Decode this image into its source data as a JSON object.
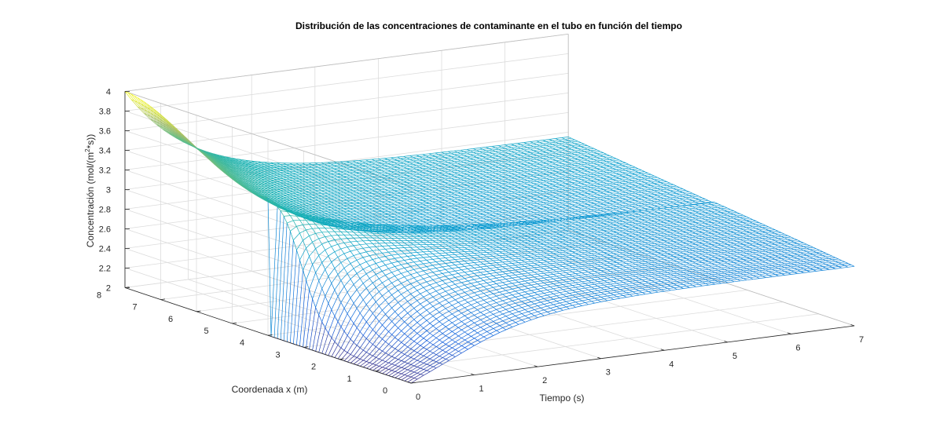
{
  "chart_data": {
    "type": "surface-mesh",
    "title": "Distribución de las concentraciones de contaminante en el tubo en función del tiempo",
    "xlabel": "Tiempo (s)",
    "ylabel": "Coordenada x (m)",
    "zlabel_parts": [
      "Concentración (mol/(m",
      "2",
      "*s))"
    ],
    "xlim": [
      0,
      7
    ],
    "ylim": [
      0,
      8
    ],
    "zlim": [
      2,
      4
    ],
    "x_ticks": [
      "0",
      "1",
      "2",
      "3",
      "4",
      "5",
      "6",
      "7"
    ],
    "y_ticks": [
      "0",
      "1",
      "2",
      "3",
      "4",
      "5",
      "6",
      "7",
      "8"
    ],
    "z_ticks": [
      "2",
      "2.2",
      "2.4",
      "2.6",
      "2.8",
      "3",
      "3.2",
      "3.4",
      "3.6",
      "3.8",
      "4"
    ],
    "colormap": "parula",
    "grid": true,
    "surface": {
      "t_range": [
        0,
        7
      ],
      "x_range": [
        0,
        8
      ],
      "initial_profile": "4.0 at x=8 decreasing to about 3.4 near x=4, step down to 2.0 below x=4",
      "steady_value": 2.75,
      "value_at_t7_x0": 2.6,
      "value_at_t7_x8": 2.95
    }
  }
}
